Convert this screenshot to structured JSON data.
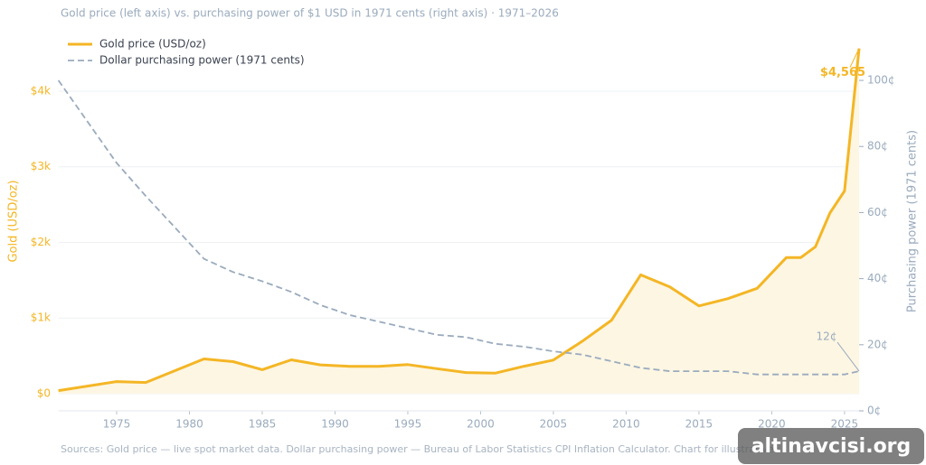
{
  "chart_data": {
    "type": "line",
    "title": "Gold price (left axis) vs. purchasing power of $1 USD in 1971 cents (right axis) · 1971–2026",
    "x": [
      1971,
      1975,
      1977,
      1981,
      1983,
      1985,
      1987,
      1989,
      1991,
      1993,
      1995,
      1997,
      1999,
      2001,
      2003,
      2005,
      2007,
      2009,
      2011,
      2013,
      2015,
      2017,
      2019,
      2021,
      2022,
      2023,
      2024,
      2025,
      2026
    ],
    "series": [
      {
        "name": "Gold price (USD/oz)",
        "color": "#f4b625",
        "axis": "y",
        "fill": "#fdf6e3",
        "values": [
          40,
          160,
          148,
          460,
          424,
          317,
          447,
          381,
          362,
          360,
          384,
          331,
          279,
          271,
          363,
          444,
          695,
          972,
          1571,
          1411,
          1160,
          1257,
          1393,
          1799,
          1800,
          1943,
          2390,
          2680,
          4565
        ],
        "value_labels": [
          null,
          null,
          null,
          null,
          null,
          null,
          null,
          null,
          null,
          null,
          null,
          null,
          null,
          null,
          null,
          null,
          null,
          null,
          null,
          null,
          null,
          null,
          null,
          null,
          null,
          null,
          null,
          null,
          "$4,565"
        ]
      },
      {
        "name": "Dollar purchasing power (1971 cents)",
        "color": "#9aabbd",
        "axis": "y2",
        "dashed": true,
        "values": [
          100,
          75,
          65,
          46,
          42,
          39.2,
          36,
          32,
          29,
          27,
          25,
          23,
          22.3,
          20.3,
          19.4,
          18,
          17,
          15,
          13,
          12,
          12,
          12,
          11,
          11,
          11,
          11,
          11,
          11,
          12
        ],
        "value_labels": [
          null,
          null,
          null,
          null,
          null,
          null,
          null,
          null,
          null,
          null,
          null,
          null,
          null,
          null,
          null,
          null,
          null,
          null,
          null,
          null,
          null,
          null,
          null,
          null,
          null,
          null,
          null,
          null,
          "12¢"
        ]
      }
    ],
    "xlim": [
      1971,
      2026
    ],
    "xticks": [
      1975,
      1980,
      1985,
      1990,
      1995,
      2000,
      2005,
      2010,
      2015,
      2020,
      2025
    ],
    "ylim": [
      -227,
      4728
    ],
    "yticks": [
      {
        "value": 0,
        "label": "$0"
      },
      {
        "value": 1000,
        "label": "$1k"
      },
      {
        "value": 2000,
        "label": "$2k"
      },
      {
        "value": 3000,
        "label": "$3k"
      },
      {
        "value": 4000,
        "label": "$4k"
      }
    ],
    "y2lim": [
      0,
      113.4
    ],
    "y2ticks": [
      {
        "value": 0,
        "label": "0¢"
      },
      {
        "value": 20,
        "label": "20¢"
      },
      {
        "value": 40,
        "label": "40¢"
      },
      {
        "value": 60,
        "label": "60¢"
      },
      {
        "value": 80,
        "label": "80¢"
      },
      {
        "value": 100,
        "label": "100¢"
      }
    ],
    "ylabel": "Gold (USD/oz)",
    "y2label": "Purchasing power (1971 cents)",
    "grid": true,
    "legend": "upper left",
    "footer": "Sources: Gold price — live spot market data.  Dollar purchasing power — Bureau of Labor Statistics CPI Inflation Calculator.  Chart for illustrative",
    "watermark": "altinavcisi.org"
  }
}
